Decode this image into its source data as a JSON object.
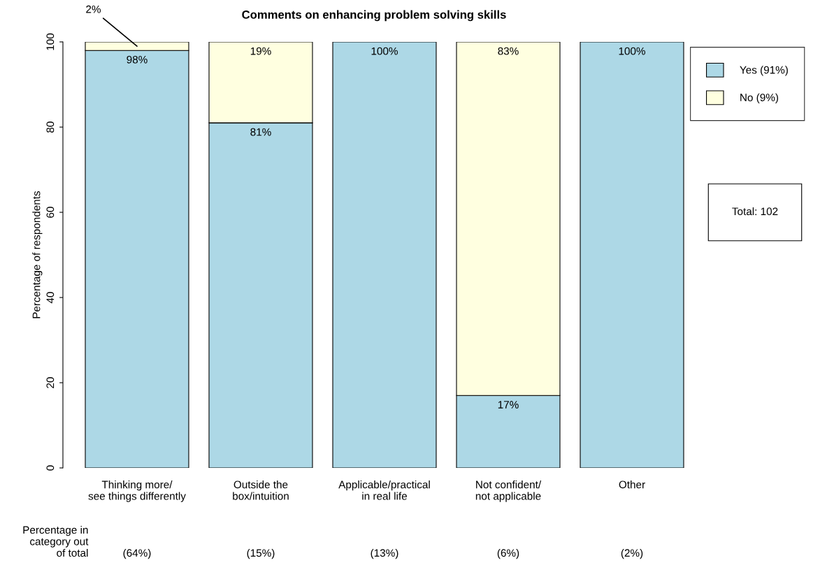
{
  "chart_data": {
    "type": "bar",
    "stacked": true,
    "title": "Comments on enhancing problem solving skills",
    "ylabel": "Percentage of respondents",
    "categories": [
      "Thinking more/\nsee things differently",
      "Outside the\nbox/intuition",
      "Applicable/practical\nin real life",
      "Not confident/\nnot applicable",
      "Other"
    ],
    "series": [
      {
        "name": "Yes (91%)",
        "color": "#add8e6",
        "values": [
          98,
          81,
          100,
          17,
          100
        ],
        "value_labels": [
          "98%",
          "81%",
          "100%",
          "17%",
          "100%"
        ]
      },
      {
        "name": "No (9%)",
        "color": "#ffffe0",
        "values": [
          2,
          19,
          null,
          83,
          null
        ],
        "value_labels": [
          "2%",
          "19%",
          null,
          "83%",
          null
        ]
      }
    ],
    "ylim": [
      0,
      100
    ],
    "yticks": [
      0,
      20,
      40,
      60,
      80,
      100
    ],
    "grid": false,
    "legend": "top right",
    "annotations": [
      "Percentage in\ncategory out\nof total",
      "Total: 102",
      "(64%)",
      "(15%)",
      "(13%)",
      "(6%)",
      "(2%)"
    ]
  }
}
